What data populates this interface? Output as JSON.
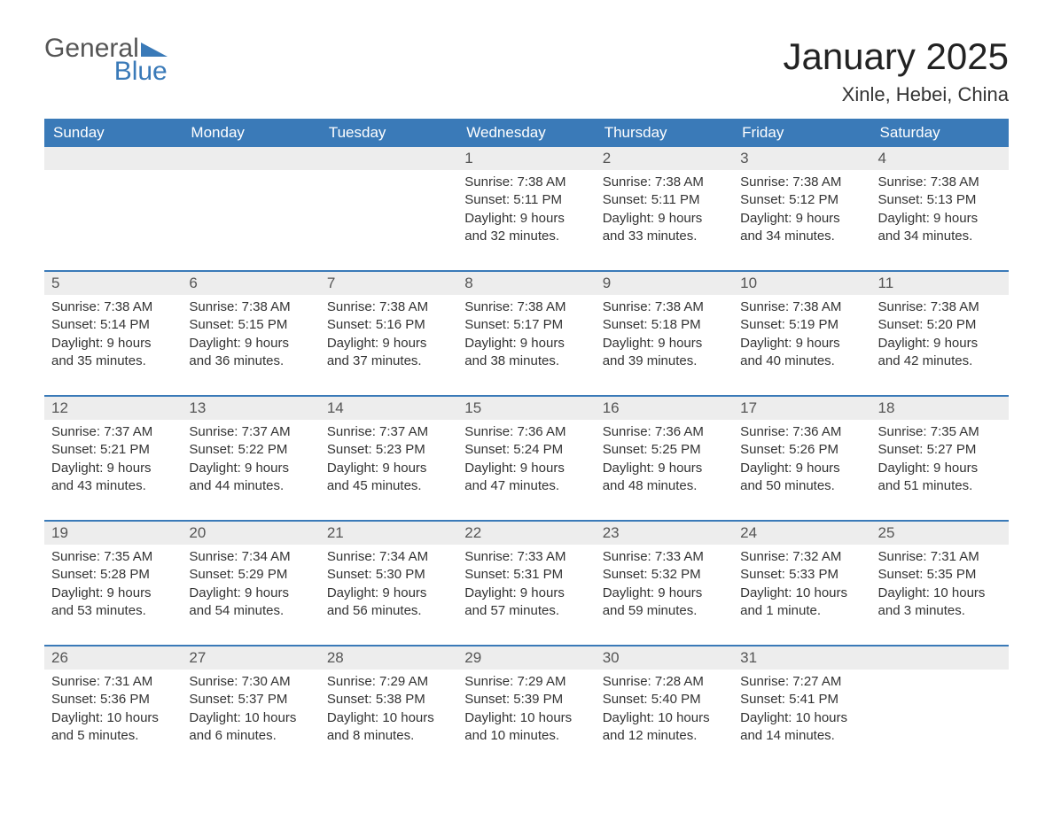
{
  "logo": {
    "word1": "General",
    "word2": "Blue"
  },
  "title": "January 2025",
  "location": "Xinle, Hebei, China",
  "colors": {
    "header_bg": "#3a7ab8",
    "header_text": "#ffffff",
    "daynum_bg": "#ededed",
    "border": "#3a7ab8",
    "body_text": "#333333",
    "logo_gray": "#555555",
    "logo_blue": "#3a7ab8"
  },
  "columns": [
    "Sunday",
    "Monday",
    "Tuesday",
    "Wednesday",
    "Thursday",
    "Friday",
    "Saturday"
  ],
  "weeks": [
    [
      null,
      null,
      null,
      {
        "n": "1",
        "sunrise": "7:38 AM",
        "sunset": "5:11 PM",
        "dl1": "Daylight: 9 hours",
        "dl2": "and 32 minutes."
      },
      {
        "n": "2",
        "sunrise": "7:38 AM",
        "sunset": "5:11 PM",
        "dl1": "Daylight: 9 hours",
        "dl2": "and 33 minutes."
      },
      {
        "n": "3",
        "sunrise": "7:38 AM",
        "sunset": "5:12 PM",
        "dl1": "Daylight: 9 hours",
        "dl2": "and 34 minutes."
      },
      {
        "n": "4",
        "sunrise": "7:38 AM",
        "sunset": "5:13 PM",
        "dl1": "Daylight: 9 hours",
        "dl2": "and 34 minutes."
      }
    ],
    [
      {
        "n": "5",
        "sunrise": "7:38 AM",
        "sunset": "5:14 PM",
        "dl1": "Daylight: 9 hours",
        "dl2": "and 35 minutes."
      },
      {
        "n": "6",
        "sunrise": "7:38 AM",
        "sunset": "5:15 PM",
        "dl1": "Daylight: 9 hours",
        "dl2": "and 36 minutes."
      },
      {
        "n": "7",
        "sunrise": "7:38 AM",
        "sunset": "5:16 PM",
        "dl1": "Daylight: 9 hours",
        "dl2": "and 37 minutes."
      },
      {
        "n": "8",
        "sunrise": "7:38 AM",
        "sunset": "5:17 PM",
        "dl1": "Daylight: 9 hours",
        "dl2": "and 38 minutes."
      },
      {
        "n": "9",
        "sunrise": "7:38 AM",
        "sunset": "5:18 PM",
        "dl1": "Daylight: 9 hours",
        "dl2": "and 39 minutes."
      },
      {
        "n": "10",
        "sunrise": "7:38 AM",
        "sunset": "5:19 PM",
        "dl1": "Daylight: 9 hours",
        "dl2": "and 40 minutes."
      },
      {
        "n": "11",
        "sunrise": "7:38 AM",
        "sunset": "5:20 PM",
        "dl1": "Daylight: 9 hours",
        "dl2": "and 42 minutes."
      }
    ],
    [
      {
        "n": "12",
        "sunrise": "7:37 AM",
        "sunset": "5:21 PM",
        "dl1": "Daylight: 9 hours",
        "dl2": "and 43 minutes."
      },
      {
        "n": "13",
        "sunrise": "7:37 AM",
        "sunset": "5:22 PM",
        "dl1": "Daylight: 9 hours",
        "dl2": "and 44 minutes."
      },
      {
        "n": "14",
        "sunrise": "7:37 AM",
        "sunset": "5:23 PM",
        "dl1": "Daylight: 9 hours",
        "dl2": "and 45 minutes."
      },
      {
        "n": "15",
        "sunrise": "7:36 AM",
        "sunset": "5:24 PM",
        "dl1": "Daylight: 9 hours",
        "dl2": "and 47 minutes."
      },
      {
        "n": "16",
        "sunrise": "7:36 AM",
        "sunset": "5:25 PM",
        "dl1": "Daylight: 9 hours",
        "dl2": "and 48 minutes."
      },
      {
        "n": "17",
        "sunrise": "7:36 AM",
        "sunset": "5:26 PM",
        "dl1": "Daylight: 9 hours",
        "dl2": "and 50 minutes."
      },
      {
        "n": "18",
        "sunrise": "7:35 AM",
        "sunset": "5:27 PM",
        "dl1": "Daylight: 9 hours",
        "dl2": "and 51 minutes."
      }
    ],
    [
      {
        "n": "19",
        "sunrise": "7:35 AM",
        "sunset": "5:28 PM",
        "dl1": "Daylight: 9 hours",
        "dl2": "and 53 minutes."
      },
      {
        "n": "20",
        "sunrise": "7:34 AM",
        "sunset": "5:29 PM",
        "dl1": "Daylight: 9 hours",
        "dl2": "and 54 minutes."
      },
      {
        "n": "21",
        "sunrise": "7:34 AM",
        "sunset": "5:30 PM",
        "dl1": "Daylight: 9 hours",
        "dl2": "and 56 minutes."
      },
      {
        "n": "22",
        "sunrise": "7:33 AM",
        "sunset": "5:31 PM",
        "dl1": "Daylight: 9 hours",
        "dl2": "and 57 minutes."
      },
      {
        "n": "23",
        "sunrise": "7:33 AM",
        "sunset": "5:32 PM",
        "dl1": "Daylight: 9 hours",
        "dl2": "and 59 minutes."
      },
      {
        "n": "24",
        "sunrise": "7:32 AM",
        "sunset": "5:33 PM",
        "dl1": "Daylight: 10 hours",
        "dl2": "and 1 minute."
      },
      {
        "n": "25",
        "sunrise": "7:31 AM",
        "sunset": "5:35 PM",
        "dl1": "Daylight: 10 hours",
        "dl2": "and 3 minutes."
      }
    ],
    [
      {
        "n": "26",
        "sunrise": "7:31 AM",
        "sunset": "5:36 PM",
        "dl1": "Daylight: 10 hours",
        "dl2": "and 5 minutes."
      },
      {
        "n": "27",
        "sunrise": "7:30 AM",
        "sunset": "5:37 PM",
        "dl1": "Daylight: 10 hours",
        "dl2": "and 6 minutes."
      },
      {
        "n": "28",
        "sunrise": "7:29 AM",
        "sunset": "5:38 PM",
        "dl1": "Daylight: 10 hours",
        "dl2": "and 8 minutes."
      },
      {
        "n": "29",
        "sunrise": "7:29 AM",
        "sunset": "5:39 PM",
        "dl1": "Daylight: 10 hours",
        "dl2": "and 10 minutes."
      },
      {
        "n": "30",
        "sunrise": "7:28 AM",
        "sunset": "5:40 PM",
        "dl1": "Daylight: 10 hours",
        "dl2": "and 12 minutes."
      },
      {
        "n": "31",
        "sunrise": "7:27 AM",
        "sunset": "5:41 PM",
        "dl1": "Daylight: 10 hours",
        "dl2": "and 14 minutes."
      },
      null
    ]
  ],
  "labels": {
    "sunrise": "Sunrise: ",
    "sunset": "Sunset: "
  }
}
